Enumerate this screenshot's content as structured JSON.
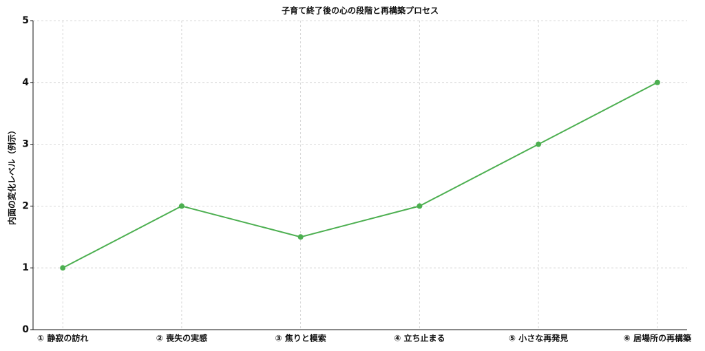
{
  "chart_data": {
    "type": "line",
    "title": "子育て終了後の心の段階と再構築プロセス",
    "y_label": "内面の変化レベル（例示）",
    "categories": [
      "① 静寂の訪れ",
      "② 喪失の実感",
      "③ 焦りと模索",
      "④ 立ち止まる",
      "⑤ 小さな再発見",
      "⑥ 居場所の再構築"
    ],
    "values": [
      1,
      2,
      1.5,
      2,
      3,
      4
    ],
    "color": "#4caf50",
    "ylim": [
      0,
      5
    ],
    "yticks": [
      0,
      1,
      2,
      3,
      4,
      5
    ],
    "grid": true
  }
}
